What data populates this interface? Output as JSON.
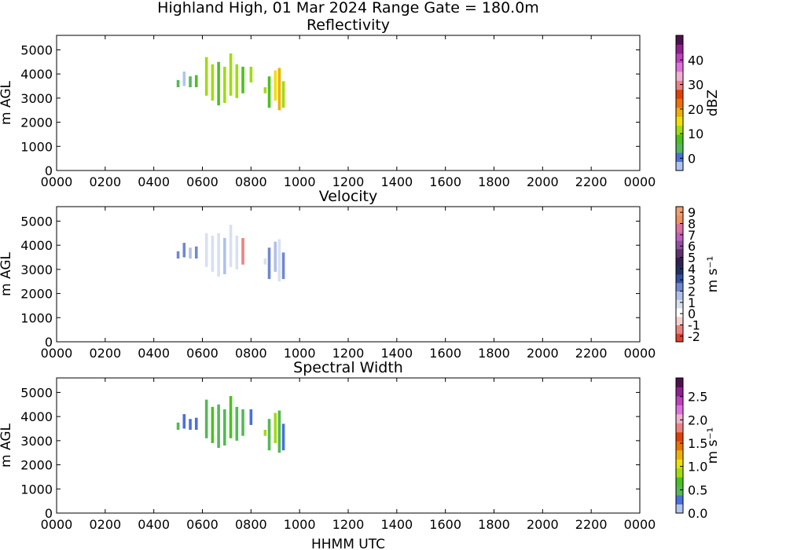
{
  "chart_data": [
    {
      "type": "heatmap",
      "title": "Reflectivity",
      "ylabel": "m AGL",
      "xlabel": "",
      "xlim": [
        "0000",
        "0000"
      ],
      "x_ticks": [
        "0000",
        "0200",
        "0400",
        "0600",
        "0800",
        "1000",
        "1200",
        "1400",
        "1600",
        "1800",
        "2000",
        "2200",
        "0000"
      ],
      "ylim": [
        0,
        5600
      ],
      "y_ticks": [
        0,
        1000,
        2000,
        3000,
        4000,
        5000
      ],
      "colorbar": {
        "label": "dBZ",
        "range": [
          -5,
          50
        ],
        "ticks": [
          0,
          10,
          20,
          30,
          40
        ],
        "colors": [
          "#b0c4f0",
          "#4a6fe0",
          "#54b858",
          "#4cc020",
          "#a0dc10",
          "#f0e000",
          "#f0b000",
          "#f07000",
          "#e04000",
          "#f08080",
          "#f0b0d0",
          "#e070e0",
          "#c040c0",
          "#902090",
          "#501050"
        ]
      },
      "echoes": [
        {
          "t": "0500",
          "base": 3450,
          "top": 3750,
          "value": 5
        },
        {
          "t": "0515",
          "base": 3500,
          "top": 4100,
          "value": -2
        },
        {
          "t": "0530",
          "base": 3450,
          "top": 3900,
          "value": 3
        },
        {
          "t": "0545",
          "base": 3450,
          "top": 3950,
          "value": 8
        },
        {
          "t": "0610",
          "base": 3100,
          "top": 4700,
          "value": 10
        },
        {
          "t": "0625",
          "base": 2900,
          "top": 4400,
          "value": 12
        },
        {
          "t": "0640",
          "base": 2700,
          "top": 4500,
          "value": 8
        },
        {
          "t": "0655",
          "base": 2800,
          "top": 4300,
          "value": 12
        },
        {
          "t": "0710",
          "base": 3100,
          "top": 4850,
          "value": 13
        },
        {
          "t": "0725",
          "base": 3000,
          "top": 4400,
          "value": 11
        },
        {
          "t": "0740",
          "base": 3200,
          "top": 4300,
          "value": 9
        },
        {
          "t": "0800",
          "base": 3650,
          "top": 4300,
          "value": 12
        },
        {
          "t": "0835",
          "base": 3200,
          "top": 3450,
          "value": 10
        },
        {
          "t": "0845",
          "base": 2600,
          "top": 3900,
          "value": 9
        },
        {
          "t": "0900",
          "base": 2900,
          "top": 4150,
          "value": 14
        },
        {
          "t": "0910",
          "base": 2500,
          "top": 4250,
          "value": 18
        },
        {
          "t": "0920",
          "base": 2600,
          "top": 3700,
          "value": 12
        }
      ]
    },
    {
      "type": "heatmap",
      "title": "Velocity",
      "ylabel": "m AGL",
      "xlabel": "",
      "xlim": [
        "0000",
        "0000"
      ],
      "x_ticks": [
        "0000",
        "0200",
        "0400",
        "0600",
        "0800",
        "1000",
        "1200",
        "1400",
        "1600",
        "1800",
        "2000",
        "2200",
        "0000"
      ],
      "ylim": [
        0,
        5600
      ],
      "y_ticks": [
        0,
        1000,
        2000,
        3000,
        4000,
        5000
      ],
      "colorbar": {
        "label": "m s⁻¹",
        "range": [
          -2.5,
          9.5
        ],
        "ticks": [
          -2,
          -1,
          0,
          1,
          2,
          3,
          4,
          5,
          6,
          7,
          8,
          9
        ],
        "colors": [
          "#e04030",
          "#f08080",
          "#f8d0d0",
          "#ffffff",
          "#d8e0f0",
          "#b0c0e8",
          "#7088d0",
          "#3050a0",
          "#203060",
          "#302050",
          "#603070",
          "#9050a0",
          "#c060c0",
          "#e070a0",
          "#f09060",
          "#f0a070"
        ]
      },
      "echoes": [
        {
          "t": "0500",
          "base": 3450,
          "top": 3750,
          "value": 2
        },
        {
          "t": "0515",
          "base": 3500,
          "top": 4100,
          "value": 2.5
        },
        {
          "t": "0530",
          "base": 3450,
          "top": 3900,
          "value": 1.5
        },
        {
          "t": "0545",
          "base": 3450,
          "top": 3950,
          "value": 2
        },
        {
          "t": "0610",
          "base": 3100,
          "top": 4500,
          "value": 0.6
        },
        {
          "t": "0625",
          "base": 2900,
          "top": 4400,
          "value": 1.2
        },
        {
          "t": "0640",
          "base": 2700,
          "top": 4500,
          "value": 0.8
        },
        {
          "t": "0655",
          "base": 2800,
          "top": 4300,
          "value": 1.5
        },
        {
          "t": "0710",
          "base": 3100,
          "top": 4850,
          "value": 0.7
        },
        {
          "t": "0725",
          "base": 3000,
          "top": 4400,
          "value": 0.5
        },
        {
          "t": "0740",
          "base": 3200,
          "top": 4300,
          "value": -1.3
        },
        {
          "t": "0800",
          "base": 3650,
          "top": 4300,
          "value": 0.3
        },
        {
          "t": "0835",
          "base": 3200,
          "top": 3450,
          "value": 1
        },
        {
          "t": "0845",
          "base": 2600,
          "top": 3900,
          "value": 2.5
        },
        {
          "t": "0900",
          "base": 2900,
          "top": 4150,
          "value": 1.5
        },
        {
          "t": "0910",
          "base": 2500,
          "top": 4250,
          "value": 0.5
        },
        {
          "t": "0920",
          "base": 2600,
          "top": 3700,
          "value": 2
        }
      ]
    },
    {
      "type": "heatmap",
      "title": "Spectral Width",
      "ylabel": "m AGL",
      "xlabel": "HHMM UTC",
      "xlim": [
        "0000",
        "0000"
      ],
      "x_ticks": [
        "0000",
        "0200",
        "0400",
        "0600",
        "0800",
        "1000",
        "1200",
        "1400",
        "1600",
        "1800",
        "2000",
        "2200",
        "0000"
      ],
      "ylim": [
        0,
        5600
      ],
      "y_ticks": [
        0,
        1000,
        2000,
        3000,
        4000,
        5000
      ],
      "colorbar": {
        "label": "m s⁻¹",
        "range": [
          0,
          2.9
        ],
        "ticks": [
          "0.0",
          "0.5",
          "1.0",
          "1.5",
          "2.0",
          "2.5"
        ],
        "colors": [
          "#b0c4f0",
          "#4a6fe0",
          "#54b858",
          "#4cc020",
          "#a0dc10",
          "#f0e000",
          "#f0b000",
          "#f07000",
          "#e04000",
          "#f08080",
          "#f0b0d0",
          "#e070e0",
          "#c040c0",
          "#902090",
          "#501050"
        ]
      },
      "echoes": [
        {
          "t": "0500",
          "base": 3450,
          "top": 3750,
          "value": 0.4
        },
        {
          "t": "0515",
          "base": 3500,
          "top": 4100,
          "value": 0.3
        },
        {
          "t": "0530",
          "base": 3450,
          "top": 3900,
          "value": 0.35
        },
        {
          "t": "0545",
          "base": 3450,
          "top": 3950,
          "value": 0.3
        },
        {
          "t": "0610",
          "base": 3100,
          "top": 4700,
          "value": 0.45
        },
        {
          "t": "0625",
          "base": 2900,
          "top": 4400,
          "value": 0.6
        },
        {
          "t": "0640",
          "base": 2700,
          "top": 4500,
          "value": 0.4
        },
        {
          "t": "0655",
          "base": 2800,
          "top": 4300,
          "value": 0.5
        },
        {
          "t": "0710",
          "base": 3100,
          "top": 4850,
          "value": 0.7
        },
        {
          "t": "0725",
          "base": 3000,
          "top": 4400,
          "value": 0.4
        },
        {
          "t": "0740",
          "base": 3200,
          "top": 4300,
          "value": 0.45
        },
        {
          "t": "0800",
          "base": 3650,
          "top": 4300,
          "value": 0.35
        },
        {
          "t": "0835",
          "base": 3200,
          "top": 3450,
          "value": 0.9
        },
        {
          "t": "0845",
          "base": 2600,
          "top": 3900,
          "value": 0.4
        },
        {
          "t": "0900",
          "base": 2900,
          "top": 4150,
          "value": 0.8
        },
        {
          "t": "0910",
          "base": 2500,
          "top": 4250,
          "value": 0.45
        },
        {
          "t": "0920",
          "base": 2600,
          "top": 3700,
          "value": 0.35
        }
      ]
    }
  ],
  "figure": {
    "suptitle": "Highland High, 01 Mar 2024 Range Gate = 180.0m"
  }
}
